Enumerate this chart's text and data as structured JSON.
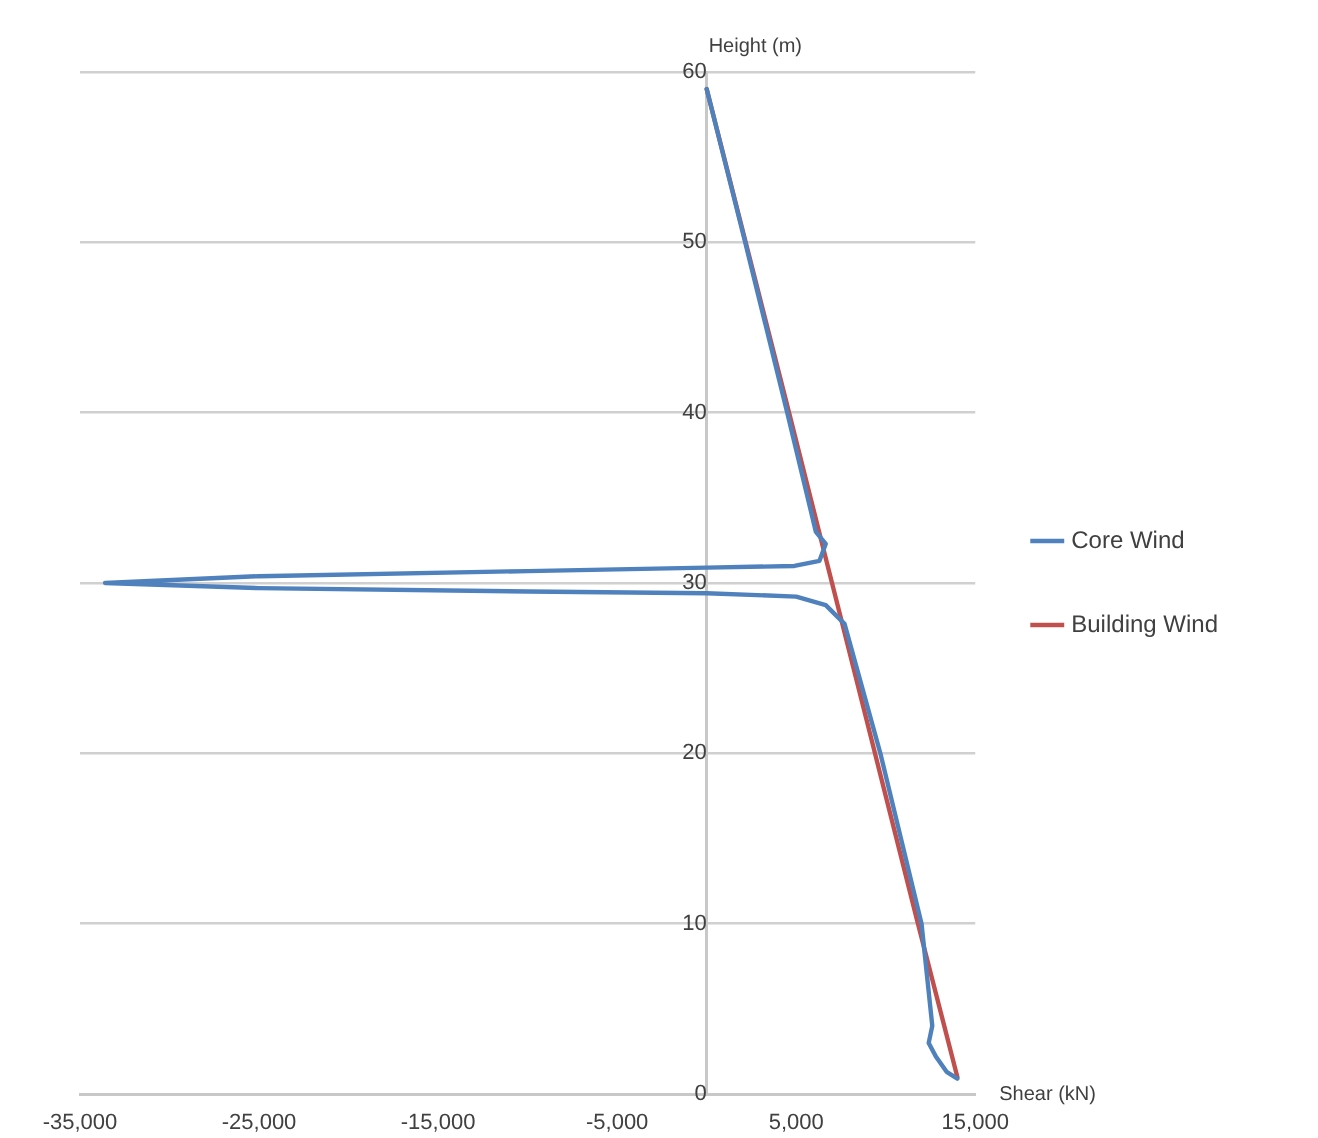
{
  "chart_data": {
    "type": "line",
    "xlabel": "Shear (kN)",
    "ylabel": "Height (m)",
    "xlim": [
      -35000,
      15000
    ],
    "xticks": [
      {
        "value": -35000,
        "label": "-35,000"
      },
      {
        "value": -25000,
        "label": "-25,000"
      },
      {
        "value": -15000,
        "label": "-15,000"
      },
      {
        "value": -5000,
        "label": "-5,000"
      },
      {
        "value": 5000,
        "label": "5,000"
      },
      {
        "value": 15000,
        "label": "15,000"
      }
    ],
    "ylim": [
      0,
      60
    ],
    "yticks": [
      0,
      10,
      20,
      30,
      40,
      50,
      60
    ],
    "grid": "y",
    "legend": "right",
    "marker": "none",
    "line_style": "solid",
    "series": [
      {
        "name": "Building Wind",
        "color": "#c0504d",
        "x": [
          0,
          4600,
          7000,
          9400,
          11800,
          14000
        ],
        "values": [
          59,
          40,
          30,
          20,
          10,
          1
        ]
      },
      {
        "name": "Core Wind",
        "color": "#4f81bd",
        "x": [
          0,
          2150,
          4500,
          6100,
          6650,
          6300,
          4900,
          0,
          -10000,
          -25000,
          -33600,
          -25000,
          -10000,
          0,
          5000,
          6650,
          7700,
          9700,
          12000,
          12600,
          12400,
          12800,
          13400,
          14000
        ],
        "values": [
          59,
          50,
          40,
          33,
          32.3,
          31.3,
          31,
          30.9,
          30.7,
          30.4,
          30,
          29.7,
          29.5,
          29.4,
          29.2,
          28.7,
          27.6,
          20,
          10,
          4,
          3,
          2.2,
          1.3,
          0.9
        ]
      }
    ]
  }
}
